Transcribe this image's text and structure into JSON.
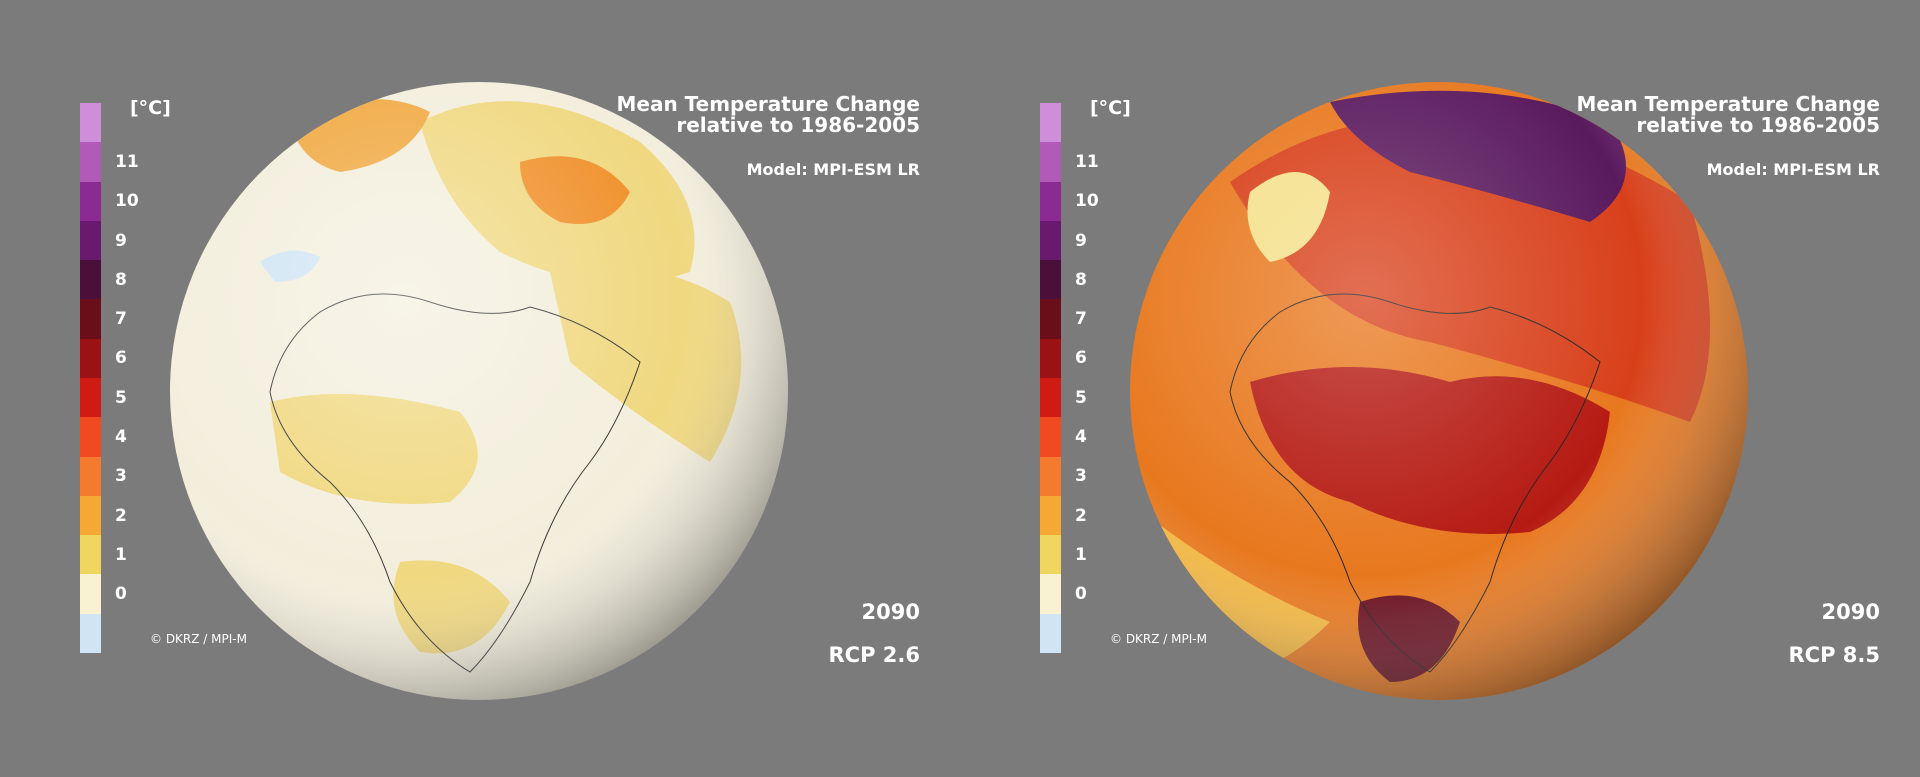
{
  "legend": {
    "unit": "[°C]",
    "labels": [
      "11",
      "10",
      "9",
      "8",
      "7",
      "6",
      "5",
      "4",
      "3",
      "2",
      "1",
      "0"
    ],
    "colors": [
      "#cf8fd8",
      "#b15ab8",
      "#8c2a93",
      "#6a1a6e",
      "#4a0f3a",
      "#6a0e1a",
      "#9a1214",
      "#d01a14",
      "#ef4a20",
      "#f47a2d",
      "#f5a834",
      "#f0d65e",
      "#f8f2d2",
      "#cfe4f4"
    ]
  },
  "panels": [
    {
      "title_line1": "Mean Temperature Change",
      "title_line2": "relative to 1986-2005",
      "model": "Model: MPI-ESM LR",
      "year": "2090",
      "scenario": "RCP 2.6",
      "credit": "© DKRZ / MPI-M",
      "globe_base": "#f3eedc",
      "globe_patch": "#f0d880",
      "globe_hot": "#f0902a"
    },
    {
      "title_line1": "Mean Temperature Change",
      "title_line2": "relative to 1986-2005",
      "model": "Model: MPI-ESM LR",
      "year": "2090",
      "scenario": "RCP 8.5",
      "credit": "© DKRZ / MPI-M",
      "globe_base": "#e8781e",
      "globe_patch": "#b51a12",
      "globe_hot": "#5a1a5e"
    }
  ]
}
